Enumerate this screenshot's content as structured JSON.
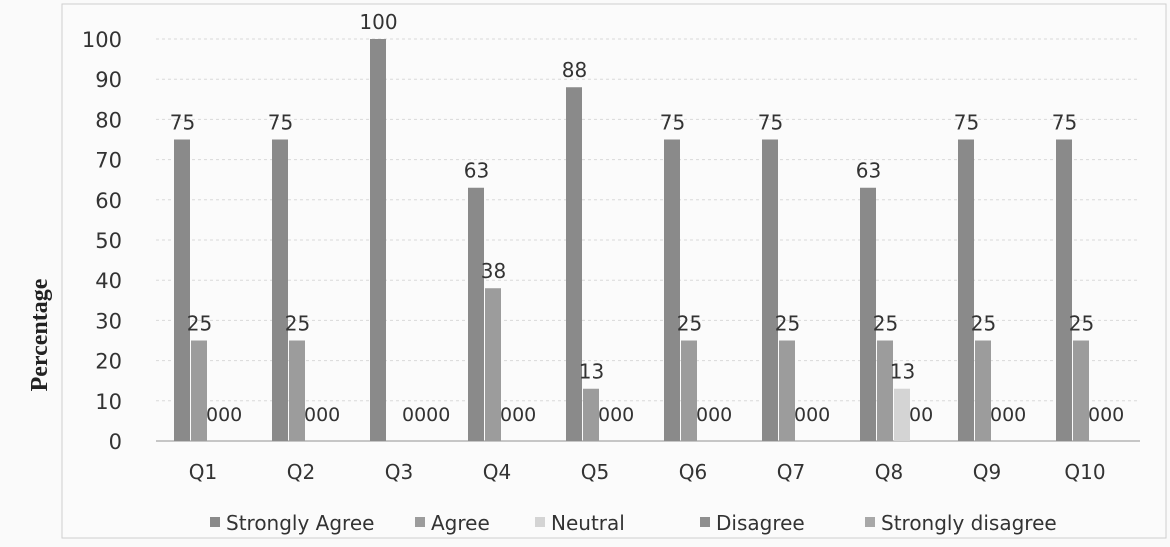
{
  "chart_data": {
    "type": "bar",
    "title": "",
    "xlabel": "",
    "ylabel": "Percentage",
    "ylim": [
      0,
      100
    ],
    "yticks": [
      0,
      10,
      20,
      30,
      40,
      50,
      60,
      70,
      80,
      90,
      100
    ],
    "grid": true,
    "legend_position": "bottom",
    "categories": [
      "Q1",
      "Q2",
      "Q3",
      "Q4",
      "Q5",
      "Q6",
      "Q7",
      "Q8",
      "Q9",
      "Q10"
    ],
    "series": [
      {
        "name": "Strongly Agree",
        "color": "#8a8a8a",
        "values": [
          75,
          75,
          100,
          63,
          88,
          75,
          75,
          63,
          75,
          75
        ]
      },
      {
        "name": "Agree",
        "color": "#9c9c9c",
        "values": [
          25,
          25,
          0,
          38,
          13,
          25,
          25,
          25,
          25,
          25
        ]
      },
      {
        "name": "Neutral",
        "color": "#d4d4d4",
        "values": [
          0,
          0,
          0,
          0,
          0,
          0,
          0,
          13,
          0,
          0
        ]
      },
      {
        "name": "Disagree",
        "color": "#8f8f8f",
        "values": [
          0,
          0,
          0,
          0,
          0,
          0,
          0,
          0,
          0,
          0
        ]
      },
      {
        "name": "Strongly disagree",
        "color": "#a8a8a8",
        "values": [
          0,
          0,
          0,
          0,
          0,
          0,
          0,
          0,
          0,
          0
        ]
      }
    ],
    "data_labels": [
      {
        "category": "Q1",
        "labels": [
          "75",
          "25",
          "000"
        ]
      },
      {
        "category": "Q2",
        "labels": [
          "75",
          "25",
          "000"
        ]
      },
      {
        "category": "Q3",
        "labels": [
          "100",
          "0000"
        ]
      },
      {
        "category": "Q4",
        "labels": [
          "63",
          "38",
          "000"
        ]
      },
      {
        "category": "Q5",
        "labels": [
          "88",
          "13",
          "000"
        ]
      },
      {
        "category": "Q6",
        "labels": [
          "75",
          "25",
          "000"
        ]
      },
      {
        "category": "Q7",
        "labels": [
          "75",
          "25",
          "000"
        ]
      },
      {
        "category": "Q8",
        "labels": [
          "63",
          "25",
          "13",
          "00"
        ]
      },
      {
        "category": "Q9",
        "labels": [
          "75",
          "25",
          "000"
        ]
      },
      {
        "category": "Q10",
        "labels": [
          "75",
          "25",
          "000"
        ]
      }
    ]
  }
}
